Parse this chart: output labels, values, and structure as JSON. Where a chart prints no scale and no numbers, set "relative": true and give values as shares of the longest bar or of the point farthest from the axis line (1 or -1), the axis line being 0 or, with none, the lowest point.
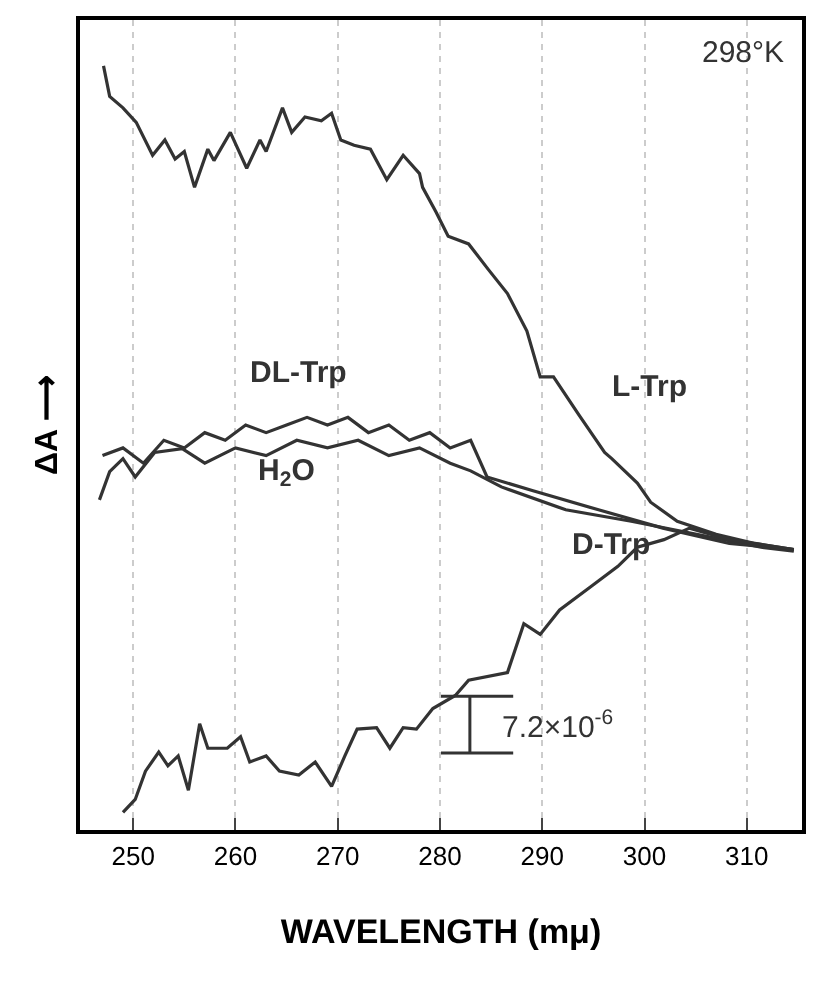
{
  "chart_data": {
    "type": "line",
    "relative": true,
    "xlabel": "WAVELENGTH (mμ)",
    "ylabel": "ΔA ⟶",
    "xlim": [
      244.8,
      315.4
    ],
    "xticks": [
      250,
      260,
      270,
      280,
      290,
      300,
      310
    ],
    "grid": "x",
    "legend": false,
    "marker": "none",
    "line_style": "solid",
    "annotations": [
      "298°K",
      "7.2×10$^{-6}$"
    ],
    "series": [
      {
        "name": "L-Trp",
        "color": "#333333",
        "x": [
          247.1,
          247.7,
          249.0,
          250.3,
          251.9,
          253.1,
          254.1,
          255.0,
          256.0,
          257.3,
          257.9,
          259.5,
          261.1,
          262.4,
          263.0,
          264.6,
          265.5,
          266.8,
          268.4,
          269.4,
          270.3,
          271.6,
          273.2,
          274.8,
          276.4,
          278.0,
          278.3,
          279.6,
          280.8,
          282.8,
          284.7,
          286.6,
          288.5,
          289.8,
          291.1,
          293.6,
          296.1,
          296.8,
          299.3,
          300.6,
          303.2,
          307.0,
          310.8,
          314.6
        ],
        "values": [
          1.0,
          0.96,
          0.945,
          0.926,
          0.883,
          0.903,
          0.878,
          0.888,
          0.841,
          0.891,
          0.876,
          0.913,
          0.866,
          0.903,
          0.888,
          0.945,
          0.913,
          0.933,
          0.928,
          0.938,
          0.903,
          0.896,
          0.891,
          0.851,
          0.883,
          0.859,
          0.841,
          0.809,
          0.777,
          0.767,
          0.734,
          0.702,
          0.653,
          0.593,
          0.593,
          0.543,
          0.494,
          0.486,
          0.454,
          0.429,
          0.404,
          0.387,
          0.375,
          0.367
        ]
      },
      {
        "name": "DL-Trp",
        "color": "#333333",
        "x": [
          247,
          249,
          251,
          253,
          255,
          257,
          259,
          261,
          263,
          265,
          267,
          269,
          271,
          273,
          275,
          277,
          279,
          281,
          283,
          284.6,
          289.1,
          295.5,
          301.8,
          308.3,
          314.6
        ],
        "values": [
          0.49,
          0.5,
          0.48,
          0.51,
          0.5,
          0.52,
          0.51,
          0.53,
          0.52,
          0.53,
          0.54,
          0.53,
          0.54,
          0.52,
          0.53,
          0.51,
          0.52,
          0.5,
          0.51,
          0.462,
          0.444,
          0.419,
          0.395,
          0.375,
          0.367
        ]
      },
      {
        "name": "H$_{2}$O",
        "color": "#333333",
        "x": [
          246.7,
          247.7,
          249.0,
          250.2,
          252.1,
          254.8,
          257,
          260,
          263,
          266,
          269,
          272,
          275,
          278,
          281,
          283,
          286,
          292.3,
          298.7,
          305.1,
          311.4,
          314.6
        ],
        "values": [
          0.432,
          0.469,
          0.486,
          0.462,
          0.494,
          0.499,
          0.48,
          0.5,
          0.49,
          0.51,
          0.5,
          0.51,
          0.49,
          0.5,
          0.48,
          0.47,
          0.449,
          0.419,
          0.404,
          0.387,
          0.37,
          0.365
        ]
      },
      {
        "name": "D-Trp",
        "color": "#333333",
        "x": [
          249.0,
          250.2,
          251.2,
          252.5,
          253.4,
          254.4,
          255.4,
          256.5,
          257.3,
          259.2,
          260.5,
          261.4,
          263.0,
          264.3,
          266.2,
          267.8,
          269.4,
          270.7,
          271.9,
          273.8,
          275.1,
          276.4,
          277.7,
          279.3,
          281.5,
          282.8,
          286.6,
          288.2,
          289.8,
          291.7,
          294.9,
          297.4,
          299.3,
          301.9,
          304.4,
          308.3,
          314.6
        ],
        "values": [
          0.023,
          0.04,
          0.077,
          0.102,
          0.084,
          0.097,
          0.052,
          0.139,
          0.107,
          0.107,
          0.122,
          0.089,
          0.097,
          0.077,
          0.072,
          0.089,
          0.057,
          0.097,
          0.132,
          0.134,
          0.107,
          0.134,
          0.132,
          0.159,
          0.176,
          0.196,
          0.206,
          0.27,
          0.256,
          0.288,
          0.32,
          0.345,
          0.37,
          0.38,
          0.395,
          0.38,
          0.367
        ]
      }
    ]
  }
}
